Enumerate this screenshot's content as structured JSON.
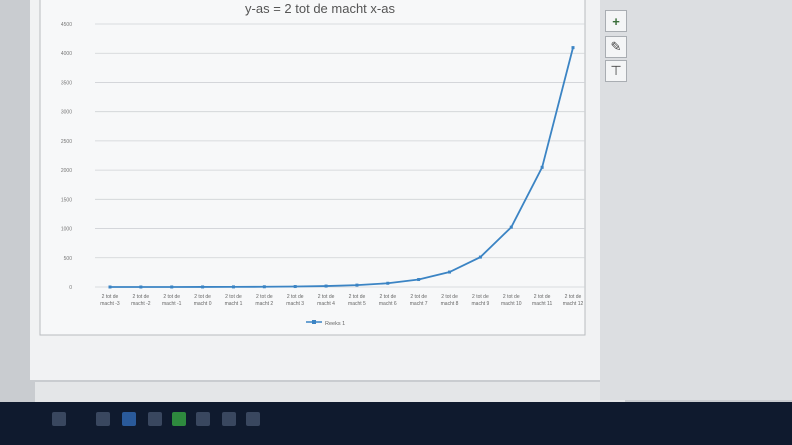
{
  "chart_data": {
    "type": "line",
    "title": "y-as = 2 tot de macht x-as",
    "categories": [
      "2 tot de macht -3",
      "2 tot de macht -2",
      "2 tot de macht -1",
      "2 tot de macht 0",
      "2 tot de macht 1",
      "2 tot de macht 2",
      "2 tot de macht 3",
      "2 tot de macht 4",
      "2 tot de macht 5",
      "2 tot de macht 6",
      "2 tot de macht 7",
      "2 tot de macht 8",
      "2 tot de macht 9",
      "2 tot de macht 10",
      "2 tot de macht 11",
      "2 tot de macht 12"
    ],
    "series": [
      {
        "name": "Reeks 1",
        "values": [
          0.125,
          0.25,
          0.5,
          1,
          2,
          4,
          8,
          16,
          32,
          64,
          128,
          256,
          512,
          1024,
          2048,
          4096
        ],
        "color": "#3b84c4"
      }
    ],
    "ylim": [
      0,
      4500
    ],
    "yticks": [
      0,
      500,
      1000,
      1500,
      2000,
      2500,
      3000,
      3500,
      4000,
      4500
    ],
    "grid": true,
    "legend": "bottom"
  },
  "toolbar": {
    "icons": [
      "plus-icon",
      "brush-icon",
      "filter-icon"
    ],
    "plus": "+",
    "brush": "✎",
    "filter": "⊤"
  }
}
